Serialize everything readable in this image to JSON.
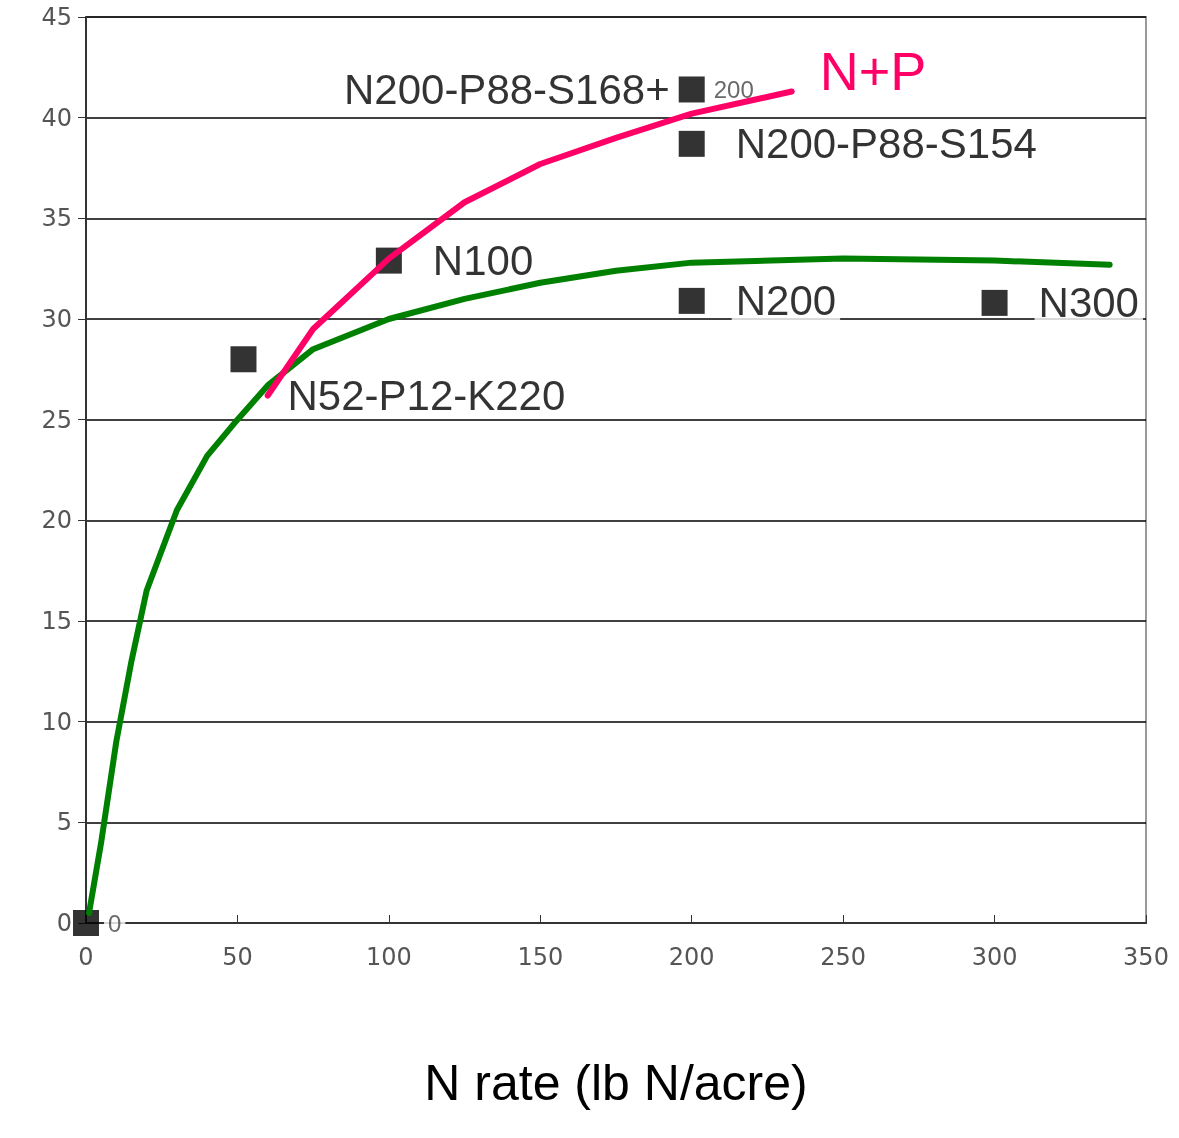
{
  "chart_data": {
    "type": "scatter",
    "xlabel": "N rate (lb N/acre)",
    "xlim": [
      0,
      350
    ],
    "xticks": [
      0,
      50,
      100,
      150,
      200,
      250,
      300,
      350
    ],
    "ylim": [
      0,
      45
    ],
    "yticks": [
      0,
      5,
      10,
      15,
      20,
      25,
      30,
      35,
      40,
      45
    ],
    "grid": "y",
    "legend": false,
    "marker": "square",
    "series": [
      {
        "type": "line",
        "color": "#008000",
        "marker": "none",
        "x": [
          1,
          5,
          10,
          15,
          20,
          30,
          40,
          50,
          60,
          75,
          100,
          125,
          150,
          175,
          200,
          250,
          300,
          338
        ],
        "values": [
          0.5,
          4,
          9,
          13,
          16.5,
          20.5,
          23.2,
          25,
          26.7,
          28.5,
          30,
          31,
          31.8,
          32.4,
          32.8,
          33,
          32.9,
          32.7
        ]
      },
      {
        "type": "line",
        "name": "N+P",
        "color": "#ff0066",
        "marker": "none",
        "x": [
          60,
          75,
          100,
          125,
          150,
          175,
          200,
          233
        ],
        "values": [
          26.2,
          29.5,
          33,
          35.8,
          37.7,
          39,
          40.2,
          41.3
        ]
      },
      {
        "color": "#000000",
        "x": [
          0,
          52,
          100,
          200,
          200,
          200,
          300
        ],
        "values": [
          0,
          28,
          32.9,
          41.4,
          38.7,
          30.9,
          30.8
        ]
      }
    ],
    "annotations": [
      {
        "text": "0",
        "x": 0,
        "y": 0
      },
      {
        "text": "N52-P12-K220",
        "x": 52,
        "y": 28
      },
      {
        "text": "N100",
        "x": 100,
        "y": 32.9
      },
      {
        "text": "N200-P88-S168+",
        "x": 200,
        "y": 41.4
      },
      {
        "text": "200",
        "x": 200,
        "y": 41.4
      },
      {
        "text": "N200-P88-S154",
        "x": 200,
        "y": 38.7
      },
      {
        "text": "N200",
        "x": 200,
        "y": 30.9
      },
      {
        "text": "N300",
        "x": 300,
        "y": 30.8
      }
    ]
  }
}
